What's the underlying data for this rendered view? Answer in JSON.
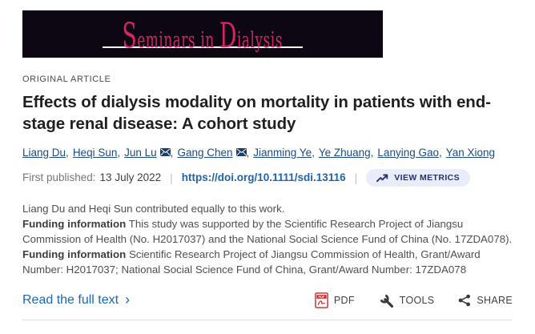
{
  "banner": {
    "journal_title": "Seminars in Dialysis",
    "bg_color": "#0d0714",
    "title_color": "#d62561"
  },
  "article": {
    "category": "ORIGINAL ARTICLE",
    "title": "Effects of dialysis modality on mortality in patients with end-stage renal disease: A cohort study"
  },
  "authors": {
    "sep": ",",
    "list": [
      {
        "name": "Liang Du",
        "has_email_icon": false
      },
      {
        "name": "Heqi Sun",
        "has_email_icon": false
      },
      {
        "name": "Jun Lu",
        "has_email_icon": true
      },
      {
        "name": "Gang Chen",
        "has_email_icon": true
      },
      {
        "name": "Jianming Ye",
        "has_email_icon": false
      },
      {
        "name": "Ye Zhuang",
        "has_email_icon": false
      },
      {
        "name": "Lanying Gao",
        "has_email_icon": false
      },
      {
        "name": "Yan Xiong",
        "has_email_icon": false
      }
    ]
  },
  "pubinfo": {
    "first_published_label": "First published:",
    "first_published_date": "13 July 2022",
    "separator": "|",
    "doi_url": "https://doi.org/10.1111/sdi.13116",
    "view_metrics_label": "VIEW METRICS"
  },
  "notes": {
    "contribution": "Liang Du and Heqi Sun contributed equally to this work.",
    "funding_1_label": "Funding information",
    "funding_1_text": "This study was supported by the Scientific Research Project of Jiangsu Commission of Health (No. H2017037) and the National Social Science Fund of China (No. 17ZDA078).",
    "funding_2_label": "Funding information",
    "funding_2_text": "Scientific Research Project of Jiangsu Commission of Health, Grant/Award Number: H2017037; National Social Science Fund of China, Grant/Award Number: 17ZDA078"
  },
  "footer": {
    "read_full_text_label": "Read the full text",
    "chevron": "›",
    "pdf_label": "PDF",
    "tools_label": "TOOLS",
    "share_label": "SHARE"
  },
  "icons": {
    "view_metrics": "trending-up-icon",
    "correspondence": "envelope-icon",
    "pdf": "pdf-file-icon",
    "tools": "wrench-icon",
    "share": "share-nodes-icon",
    "read_more": "chevron-right-icon"
  },
  "colors": {
    "banner_bg": "#0d0714",
    "accent_pink": "#d62561",
    "link_blue": "#1f64ad",
    "author_navy": "#1e4b7d",
    "metrics_pill_bg": "#e9edf9",
    "metrics_text": "#29306e",
    "pdf_red": "#c9252b"
  }
}
